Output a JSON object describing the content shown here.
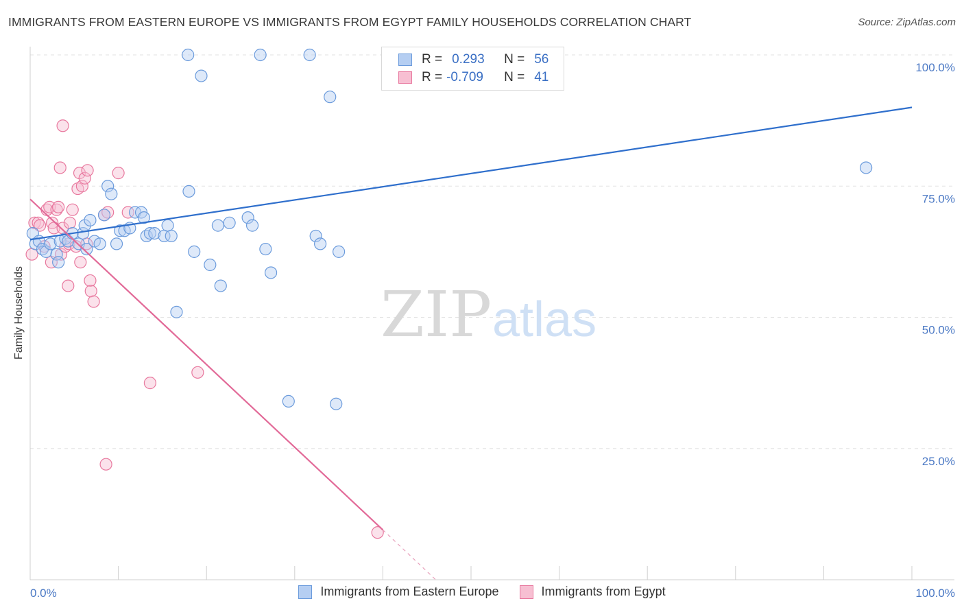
{
  "chart_data": {
    "type": "scatter",
    "title": "IMMIGRANTS FROM EASTERN EUROPE VS IMMIGRANTS FROM EGYPT FAMILY HOUSEHOLDS CORRELATION CHART",
    "source": "Source: ZipAtlas.com",
    "ylabel": "Family Households",
    "xlim": [
      0,
      100
    ],
    "ylim": [
      0,
      100
    ],
    "x_tick_labels": [
      "0.0%",
      "100.0%"
    ],
    "y_ticks": [
      25,
      50,
      75,
      100
    ],
    "y_tick_labels": [
      "25.0%",
      "50.0%",
      "75.0%",
      "100.0%"
    ],
    "grid": true,
    "legend_position": "top-center",
    "series": [
      {
        "name": "Immigrants from Eastern Europe",
        "color": "#6b9bdc",
        "fill": "#b5cef2",
        "r_label": "R =",
        "r_value": "0.293",
        "n_label": "N =",
        "n_value": "56",
        "trend": [
          [
            0,
            64.8
          ],
          [
            100,
            90.0
          ]
        ],
        "points": [
          [
            0.3,
            66
          ],
          [
            0.6,
            64
          ],
          [
            1.0,
            64.5
          ],
          [
            1.4,
            63
          ],
          [
            1.8,
            62.5
          ],
          [
            2.3,
            64
          ],
          [
            3.0,
            62
          ],
          [
            3.4,
            64.5
          ],
          [
            3.2,
            60.5
          ],
          [
            4.0,
            65
          ],
          [
            4.3,
            64.5
          ],
          [
            4.8,
            66
          ],
          [
            5.5,
            64
          ],
          [
            6.0,
            66
          ],
          [
            6.2,
            67.5
          ],
          [
            6.4,
            63
          ],
          [
            6.8,
            68.5
          ],
          [
            7.3,
            64.5
          ],
          [
            7.9,
            64
          ],
          [
            8.4,
            69.5
          ],
          [
            8.8,
            75
          ],
          [
            9.2,
            73.5
          ],
          [
            9.8,
            64
          ],
          [
            10.2,
            66.5
          ],
          [
            10.7,
            66.5
          ],
          [
            11.3,
            67
          ],
          [
            11.9,
            70
          ],
          [
            12.6,
            70
          ],
          [
            12.9,
            69
          ],
          [
            13.2,
            65.5
          ],
          [
            13.6,
            66
          ],
          [
            14.1,
            66
          ],
          [
            15.2,
            65.5
          ],
          [
            15.6,
            67.5
          ],
          [
            16.0,
            65.5
          ],
          [
            16.6,
            51
          ],
          [
            18.0,
            74
          ],
          [
            18.6,
            62.5
          ],
          [
            20.4,
            60
          ],
          [
            21.3,
            67.5
          ],
          [
            21.6,
            56
          ],
          [
            22.6,
            68
          ],
          [
            24.7,
            69
          ],
          [
            25.2,
            67.5
          ],
          [
            26.7,
            63
          ],
          [
            27.3,
            58.5
          ],
          [
            29.3,
            34
          ],
          [
            32.4,
            65.5
          ],
          [
            32.9,
            64
          ],
          [
            34.7,
            33.5
          ],
          [
            35.0,
            62.5
          ],
          [
            17.9,
            100
          ],
          [
            19.4,
            96
          ],
          [
            26.1,
            100
          ],
          [
            31.7,
            100
          ],
          [
            34.0,
            92
          ],
          [
            94.8,
            78.5
          ]
        ]
      },
      {
        "name": "Immigrants from Egypt",
        "color": "#e8789e",
        "fill": "#f7bfd2",
        "r_label": "R =",
        "r_value": "-0.709",
        "n_label": "N =",
        "n_value": "41",
        "trend": [
          [
            0,
            72.5
          ],
          [
            40,
            9.5
          ]
        ],
        "trend_dashed_to": [
          46,
          0
        ],
        "points": [
          [
            0.2,
            62
          ],
          [
            0.5,
            68
          ],
          [
            0.9,
            68
          ],
          [
            1.1,
            67.5
          ],
          [
            1.6,
            63.5
          ],
          [
            1.9,
            70.5
          ],
          [
            2.2,
            71
          ],
          [
            2.4,
            60.5
          ],
          [
            2.5,
            68
          ],
          [
            2.7,
            67
          ],
          [
            3.0,
            70.5
          ],
          [
            3.2,
            71
          ],
          [
            3.5,
            62
          ],
          [
            3.7,
            67
          ],
          [
            3.4,
            78.5
          ],
          [
            3.7,
            86.5
          ],
          [
            4.0,
            63.5
          ],
          [
            4.4,
            64
          ],
          [
            4.3,
            56
          ],
          [
            4.5,
            68
          ],
          [
            4.8,
            70.5
          ],
          [
            5.2,
            63.5
          ],
          [
            5.4,
            74.5
          ],
          [
            5.6,
            77.5
          ],
          [
            5.7,
            60.5
          ],
          [
            5.9,
            75
          ],
          [
            6.2,
            76.5
          ],
          [
            6.4,
            64
          ],
          [
            6.5,
            78
          ],
          [
            6.8,
            57
          ],
          [
            6.9,
            55
          ],
          [
            7.2,
            53
          ],
          [
            8.4,
            69.5
          ],
          [
            8.8,
            70
          ],
          [
            10.0,
            77.5
          ],
          [
            11.1,
            70
          ],
          [
            13.6,
            37.5
          ],
          [
            19.0,
            39.5
          ],
          [
            8.6,
            22
          ],
          [
            39.4,
            9
          ]
        ]
      }
    ]
  }
}
